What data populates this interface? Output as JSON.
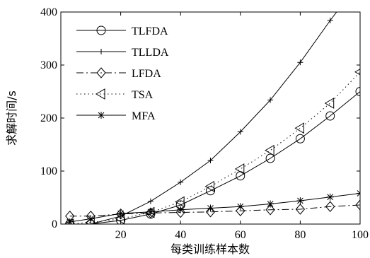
{
  "chart_data": {
    "type": "line",
    "xlabel": "每类训练样本数",
    "ylabel": "求解时间/s",
    "xlim": [
      0,
      100
    ],
    "ylim": [
      0,
      400
    ],
    "x_ticks": [
      20,
      40,
      60,
      80,
      100
    ],
    "y_ticks": [
      0,
      100,
      200,
      300,
      400
    ],
    "grid": false,
    "legend_position": "top-left",
    "series": [
      {
        "name": "TLFDA",
        "line_style": "solid",
        "marker": "circle",
        "x": [
          3,
          10,
          20,
          30,
          40,
          50,
          60,
          70,
          80,
          90,
          100
        ],
        "y": [
          0,
          0,
          7,
          19,
          36,
          63,
          91,
          124,
          161,
          204,
          250
        ],
        "plot_x": [
          3,
          10,
          20,
          30,
          40,
          50,
          60,
          70,
          80,
          90,
          100
        ]
      },
      {
        "name": "TLLDA",
        "line_style": "solid",
        "marker": "plus",
        "x": [
          3,
          10,
          20,
          30,
          40,
          50,
          60,
          70,
          80,
          90,
          93.5
        ],
        "y": [
          0,
          0,
          15,
          43,
          79,
          120,
          174,
          234,
          305,
          384,
          410
        ],
        "plot_x": [
          3,
          10,
          20,
          30,
          40,
          50,
          60,
          70,
          80,
          90
        ],
        "curve_x_max": 93.5
      },
      {
        "name": "LFDA",
        "line_style": "dashdot",
        "marker": "diamond",
        "x": [
          3,
          10,
          20,
          30,
          40,
          50,
          60,
          70,
          80,
          90,
          100
        ],
        "y": [
          15,
          15,
          19,
          21,
          22,
          23,
          25,
          27,
          28,
          33,
          36
        ],
        "plot_x": [
          3,
          10,
          20,
          30,
          40,
          50,
          60,
          70,
          80,
          90,
          100
        ]
      },
      {
        "name": "TSA",
        "line_style": "dotted",
        "marker": "triangle-left",
        "x": [
          3,
          10,
          20,
          30,
          40,
          50,
          60,
          70,
          80,
          90,
          100
        ],
        "y": [
          0,
          3,
          10,
          22,
          42,
          71,
          104,
          139,
          181,
          228,
          287
        ],
        "plot_x": [
          3,
          10,
          20,
          30,
          40,
          50,
          60,
          70,
          80,
          90,
          100
        ]
      },
      {
        "name": "MFA",
        "line_style": "solid",
        "marker": "asterisk",
        "x": [
          3,
          10,
          20,
          30,
          40,
          50,
          60,
          70,
          80,
          90,
          100
        ],
        "y": [
          4,
          10,
          20,
          23,
          27,
          30,
          33,
          38,
          44,
          51,
          58
        ],
        "plot_x": [
          3,
          10,
          20,
          30,
          40,
          50,
          60,
          70,
          80,
          90,
          100
        ]
      }
    ]
  }
}
